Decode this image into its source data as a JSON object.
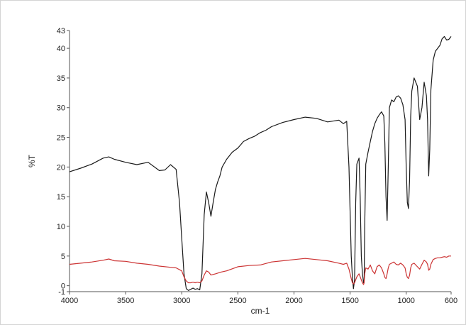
{
  "chart_data": {
    "type": "line",
    "title": "",
    "xlabel": "cm-1",
    "ylabel": "%T",
    "xlim": [
      4000,
      600
    ],
    "ylim": [
      -1,
      43
    ],
    "x_reversed": true,
    "x_ticks": [
      4000,
      3500,
      3000,
      2500,
      2000,
      1500,
      1000,
      600
    ],
    "y_ticks": [
      -1,
      0,
      5,
      10,
      15,
      20,
      25,
      30,
      35,
      40,
      43
    ],
    "grid": false,
    "legend": "none",
    "series": [
      {
        "color": "#1a1a1a",
        "x": [
          4000,
          3900,
          3800,
          3700,
          3650,
          3600,
          3500,
          3400,
          3300,
          3200,
          3150,
          3100,
          3050,
          3020,
          3000,
          2980,
          2960,
          2940,
          2920,
          2900,
          2880,
          2860,
          2840,
          2820,
          2800,
          2780,
          2760,
          2740,
          2720,
          2700,
          2680,
          2660,
          2640,
          2600,
          2550,
          2500,
          2450,
          2400,
          2350,
          2300,
          2250,
          2200,
          2100,
          2000,
          1900,
          1800,
          1700,
          1600,
          1560,
          1530,
          1510,
          1490,
          1480,
          1470,
          1460,
          1450,
          1440,
          1420,
          1410,
          1400,
          1390,
          1380,
          1375,
          1370,
          1360,
          1340,
          1320,
          1300,
          1280,
          1260,
          1240,
          1220,
          1200,
          1190,
          1180,
          1170,
          1160,
          1150,
          1130,
          1110,
          1090,
          1070,
          1050,
          1030,
          1010,
          1000,
          990,
          980,
          970,
          960,
          950,
          930,
          900,
          880,
          860,
          840,
          820,
          810,
          800,
          790,
          780,
          760,
          740,
          720,
          700,
          680,
          660,
          640,
          620,
          600
        ],
        "y": [
          19.2,
          19.8,
          20.5,
          21.5,
          21.7,
          21.3,
          20.8,
          20.4,
          20.8,
          19.4,
          19.5,
          20.4,
          19.6,
          14,
          8,
          2,
          -0.5,
          -0.8,
          -0.6,
          -0.4,
          -0.6,
          -0.5,
          -0.7,
          2,
          12,
          15.8,
          14,
          11.7,
          14,
          16.2,
          17.5,
          18.5,
          20,
          21.3,
          22.5,
          23.2,
          24.3,
          24.8,
          25.2,
          25.8,
          26.2,
          26.8,
          27.5,
          28,
          28.4,
          28.2,
          27.6,
          27.9,
          27.3,
          27.7,
          20,
          5,
          1.5,
          -0.5,
          1,
          14,
          20.5,
          21.5,
          15,
          5,
          2,
          0.5,
          1,
          10,
          20.5,
          22.5,
          24.3,
          26,
          27.3,
          28.2,
          28.8,
          29.3,
          28.6,
          24,
          15,
          11,
          20,
          30,
          31.3,
          31,
          31.8,
          32,
          31.6,
          30.5,
          28,
          20,
          14,
          13,
          18,
          28.5,
          32.8,
          35,
          33.6,
          28,
          30,
          34.3,
          32,
          28,
          18.5,
          23,
          33,
          38,
          39.5,
          40,
          40.5,
          41.6,
          42,
          41.4,
          41.5,
          42
        ]
      },
      {
        "color": "#cc3333",
        "x": [
          4000,
          3900,
          3800,
          3700,
          3650,
          3600,
          3500,
          3400,
          3300,
          3200,
          3100,
          3050,
          3000,
          2980,
          2960,
          2940,
          2920,
          2900,
          2880,
          2860,
          2840,
          2820,
          2800,
          2780,
          2760,
          2740,
          2700,
          2650,
          2600,
          2500,
          2400,
          2300,
          2200,
          2100,
          2000,
          1900,
          1800,
          1700,
          1600,
          1560,
          1530,
          1510,
          1490,
          1480,
          1470,
          1460,
          1450,
          1440,
          1420,
          1400,
          1390,
          1380,
          1375,
          1370,
          1360,
          1340,
          1320,
          1300,
          1280,
          1260,
          1240,
          1220,
          1200,
          1190,
          1180,
          1170,
          1160,
          1150,
          1130,
          1110,
          1090,
          1070,
          1050,
          1030,
          1010,
          1000,
          990,
          980,
          970,
          960,
          950,
          930,
          900,
          880,
          860,
          840,
          820,
          810,
          800,
          790,
          780,
          760,
          740,
          720,
          700,
          680,
          660,
          640,
          620,
          600
        ],
        "y": [
          3.6,
          3.8,
          4,
          4.3,
          4.5,
          4.2,
          4.1,
          3.8,
          3.6,
          3.3,
          3.1,
          3,
          2.5,
          1.5,
          0.8,
          0.5,
          0.5,
          0.6,
          0.5,
          0.6,
          0.5,
          0.8,
          1.8,
          2.5,
          2.3,
          1.8,
          2,
          2.3,
          2.5,
          3.2,
          3.4,
          3.5,
          4,
          4.2,
          4.4,
          4.6,
          4.4,
          4.2,
          3.8,
          3.6,
          3.8,
          2.8,
          1.2,
          0.5,
          0.3,
          0.5,
          1,
          1.5,
          2,
          1,
          0.5,
          0.2,
          0.5,
          2,
          3,
          2.8,
          3.5,
          2.5,
          2,
          3.2,
          3.5,
          3,
          2,
          1.4,
          1.2,
          2,
          3,
          3.6,
          3.8,
          4,
          3.6,
          3.5,
          3.8,
          3.5,
          3,
          2,
          1.4,
          1.2,
          1.8,
          3,
          3.6,
          3.8,
          3.2,
          2.8,
          3.6,
          4.3,
          4,
          3.6,
          2.6,
          2.8,
          3.6,
          4.4,
          4.6,
          4.7,
          4.7,
          4.8,
          4.9,
          4.8,
          5,
          5
        ]
      }
    ]
  }
}
